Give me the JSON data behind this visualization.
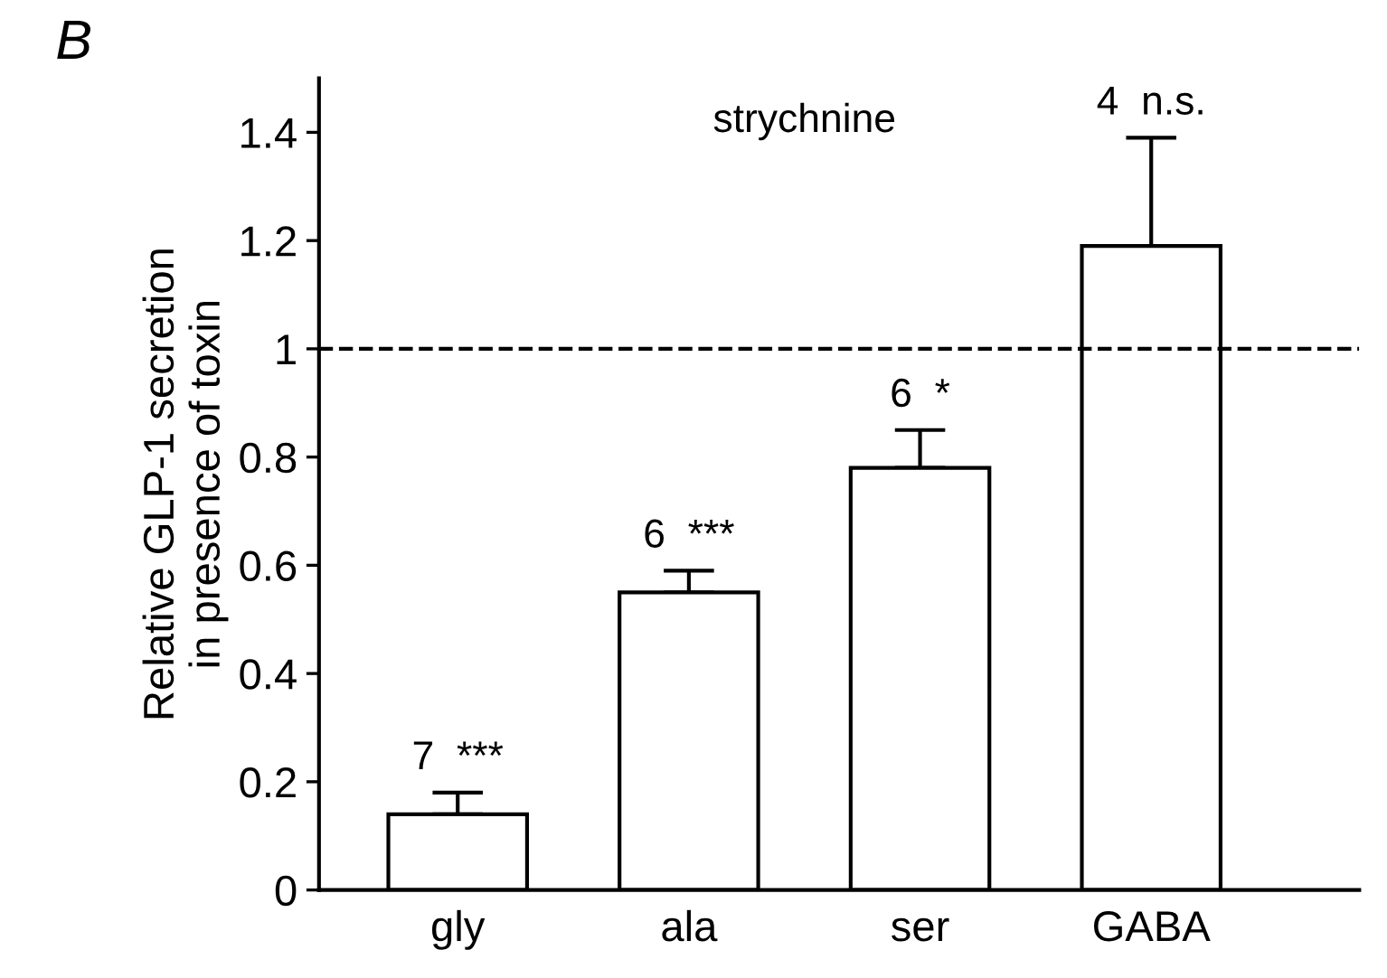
{
  "chart_data": {
    "type": "bar",
    "title": "B",
    "ylabel": "Relative GLP-1 secretion\nin presence of toxin",
    "categories": [
      "gly",
      "ala",
      "ser",
      "GABA"
    ],
    "values": [
      0.14,
      0.55,
      0.78,
      1.19
    ],
    "errors": [
      [
        0.14,
        0.18
      ],
      [
        0.55,
        0.59
      ],
      [
        0.78,
        0.85
      ],
      [
        1.19,
        1.39
      ]
    ],
    "color": "#ffffff",
    "ylim": [
      0,
      1.5
    ],
    "yticks": [
      0,
      0.2,
      0.4,
      0.6,
      0.8,
      1,
      1.2,
      1.4
    ],
    "ref_lines": [
      {
        "axis": "y",
        "value": 1,
        "line_style": "dashed",
        "color": "#000000"
      }
    ],
    "annotations": [
      "strychnine",
      {
        "text": "7  ***",
        "x": "gly",
        "y": 0.18
      },
      {
        "text": "6  ***",
        "x": "ala",
        "y": 0.59
      },
      {
        "text": "6  *",
        "x": "ser",
        "y": 0.85
      },
      {
        "text": "4  n.s.",
        "x": "GABA",
        "y": 1.39
      }
    ],
    "grid": false,
    "legend": false
  }
}
